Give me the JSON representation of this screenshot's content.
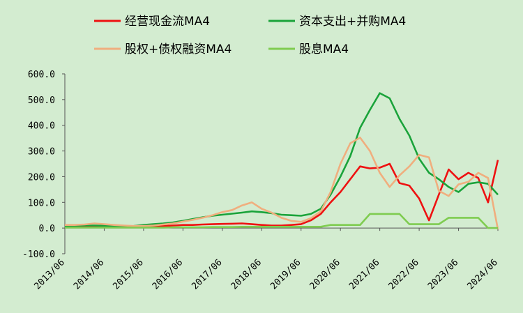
{
  "chart_data": {
    "type": "line",
    "title": "",
    "xlabel": "",
    "ylabel": "",
    "ylim": [
      -100,
      600
    ],
    "yticks": [
      "600.0",
      "500.0",
      "400.0",
      "300.0",
      "200.0",
      "100.0",
      "0.0",
      "-100.0"
    ],
    "ytick_values": [
      600,
      500,
      400,
      300,
      200,
      100,
      0,
      -100
    ],
    "xticks": [
      "2013/06",
      "2014/06",
      "2015/06",
      "2016/06",
      "2017/06",
      "2018/06",
      "2019/06",
      "2020/06",
      "2021/06",
      "2022/06",
      "2023/06",
      "2024/06"
    ],
    "legend_position": "top",
    "grid": false,
    "x": [
      "2013/06",
      "2013/09",
      "2013/12",
      "2014/03",
      "2014/06",
      "2014/09",
      "2014/12",
      "2015/03",
      "2015/06",
      "2015/09",
      "2015/12",
      "2016/03",
      "2016/06",
      "2016/09",
      "2016/12",
      "2017/03",
      "2017/06",
      "2017/09",
      "2017/12",
      "2018/03",
      "2018/06",
      "2018/09",
      "2018/12",
      "2019/03",
      "2019/06",
      "2019/09",
      "2019/12",
      "2020/03",
      "2020/06",
      "2020/09",
      "2020/12",
      "2021/03",
      "2021/06",
      "2021/09",
      "2021/12",
      "2022/03",
      "2022/06",
      "2022/09",
      "2022/12",
      "2023/03",
      "2023/06",
      "2023/09",
      "2023/12",
      "2024/03",
      "2024/06"
    ],
    "series": [
      {
        "name": "经营现金流MA4",
        "color": "#ee1111",
        "values": [
          5,
          5,
          6,
          6,
          5,
          4,
          3,
          4,
          5,
          6,
          8,
          10,
          12,
          12,
          14,
          15,
          16,
          17,
          18,
          15,
          12,
          10,
          10,
          12,
          15,
          30,
          55,
          100,
          140,
          190,
          240,
          232,
          235,
          250,
          175,
          165,
          115,
          30,
          130,
          228,
          190,
          215,
          195,
          100,
          265
        ]
      },
      {
        "name": "资本支出+并购MA4",
        "color": "#1aa33a",
        "values": [
          8,
          9,
          10,
          10,
          9,
          7,
          6,
          8,
          12,
          15,
          18,
          22,
          28,
          35,
          42,
          48,
          52,
          56,
          60,
          65,
          62,
          58,
          52,
          50,
          48,
          55,
          75,
          130,
          200,
          280,
          390,
          460,
          525,
          505,
          425,
          360,
          270,
          215,
          190,
          160,
          140,
          172,
          178,
          172,
          130
        ]
      },
      {
        "name": "股权+债权融资MA4",
        "color": "#f0ae7e",
        "values": [
          12,
          12,
          14,
          18,
          15,
          12,
          10,
          8,
          8,
          10,
          14,
          18,
          25,
          32,
          40,
          50,
          62,
          70,
          88,
          100,
          75,
          60,
          40,
          28,
          24,
          38,
          65,
          140,
          250,
          330,
          352,
          300,
          215,
          160,
          205,
          240,
          285,
          275,
          145,
          125,
          170,
          180,
          215,
          195,
          -5
        ]
      },
      {
        "name": "股息MA4",
        "color": "#7fcc50",
        "values": [
          2,
          2,
          2,
          2,
          2,
          2,
          2,
          2,
          2,
          2,
          2,
          3,
          3,
          3,
          3,
          4,
          4,
          4,
          5,
          5,
          5,
          5,
          5,
          5,
          5,
          5,
          5,
          12,
          12,
          12,
          12,
          55,
          55,
          55,
          55,
          15,
          15,
          15,
          15,
          40,
          40,
          40,
          40,
          0,
          0
        ]
      }
    ]
  }
}
